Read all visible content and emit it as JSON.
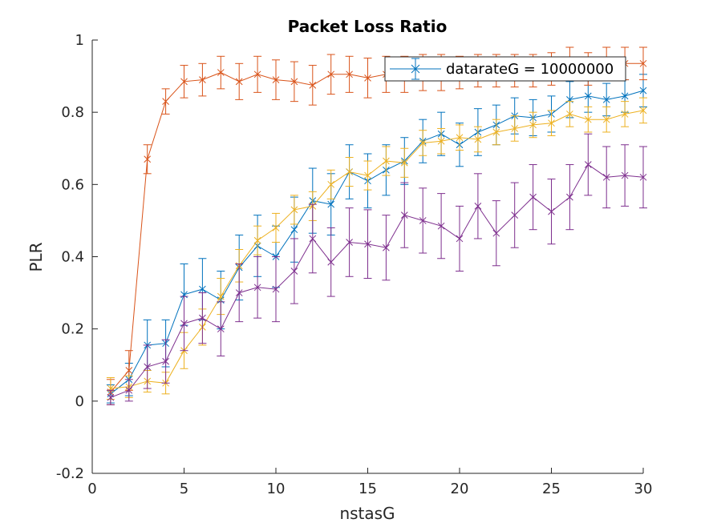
{
  "chart_data": {
    "type": "line",
    "title": "Packet Loss Ratio",
    "xlabel": "nstasG",
    "ylabel": "PLR",
    "xlim": [
      0,
      30
    ],
    "ylim": [
      -0.2,
      1
    ],
    "xticks": [
      0,
      5,
      10,
      15,
      20,
      25,
      30
    ],
    "yticks": [
      -0.2,
      0,
      0.2,
      0.4,
      0.6,
      0.8,
      1
    ],
    "xtick_labels": [
      "0",
      "5",
      "10",
      "15",
      "20",
      "25",
      "30"
    ],
    "ytick_labels": [
      "-0.2",
      "0",
      "0.2",
      "0.4",
      "0.6",
      "0.8",
      "1"
    ],
    "grid": false,
    "legend": {
      "position": "top-right",
      "entries": [
        "datarateG = 10000000"
      ]
    },
    "x": [
      1,
      2,
      3,
      4,
      5,
      6,
      7,
      8,
      9,
      10,
      11,
      12,
      13,
      14,
      15,
      16,
      17,
      18,
      19,
      20,
      21,
      22,
      23,
      24,
      25,
      26,
      27,
      28,
      29,
      30
    ],
    "series": [
      {
        "name": "datarateG = 10000000",
        "color": "#0072BD",
        "values": [
          0.02,
          0.06,
          0.155,
          0.16,
          0.295,
          0.31,
          0.28,
          0.37,
          0.43,
          0.4,
          0.475,
          0.555,
          0.545,
          0.635,
          0.61,
          0.64,
          0.665,
          0.72,
          0.74,
          0.71,
          0.745,
          0.765,
          0.79,
          0.785,
          0.795,
          0.835,
          0.845,
          0.835,
          0.845,
          0.86
        ],
        "errors": [
          0.025,
          0.045,
          0.07,
          0.065,
          0.085,
          0.085,
          0.08,
          0.09,
          0.085,
          0.085,
          0.09,
          0.09,
          0.085,
          0.075,
          0.075,
          0.07,
          0.065,
          0.06,
          0.06,
          0.06,
          0.065,
          0.055,
          0.05,
          0.05,
          0.05,
          0.05,
          0.045,
          0.045,
          0.045,
          0.045
        ]
      },
      {
        "color": "#D95319",
        "values": [
          0.025,
          0.085,
          0.67,
          0.83,
          0.885,
          0.89,
          0.91,
          0.885,
          0.905,
          0.89,
          0.885,
          0.875,
          0.905,
          0.905,
          0.895,
          0.905,
          0.905,
          0.91,
          0.91,
          0.91,
          0.915,
          0.915,
          0.915,
          0.915,
          0.92,
          0.935,
          0.92,
          0.935,
          0.935,
          0.935
        ],
        "errors": [
          0.035,
          0.055,
          0.04,
          0.035,
          0.045,
          0.045,
          0.045,
          0.05,
          0.05,
          0.055,
          0.055,
          0.055,
          0.055,
          0.05,
          0.055,
          0.05,
          0.05,
          0.05,
          0.05,
          0.045,
          0.045,
          0.045,
          0.045,
          0.045,
          0.045,
          0.045,
          0.045,
          0.045,
          0.045,
          0.045
        ]
      },
      {
        "color": "#EDB120",
        "values": [
          0.035,
          0.04,
          0.055,
          0.05,
          0.14,
          0.205,
          0.29,
          0.375,
          0.445,
          0.48,
          0.53,
          0.54,
          0.6,
          0.635,
          0.625,
          0.665,
          0.66,
          0.715,
          0.72,
          0.73,
          0.725,
          0.745,
          0.755,
          0.765,
          0.77,
          0.795,
          0.78,
          0.78,
          0.795,
          0.805
        ],
        "errors": [
          0.03,
          0.03,
          0.03,
          0.03,
          0.05,
          0.05,
          0.05,
          0.045,
          0.04,
          0.04,
          0.04,
          0.04,
          0.04,
          0.04,
          0.04,
          0.04,
          0.04,
          0.035,
          0.035,
          0.035,
          0.035,
          0.035,
          0.035,
          0.035,
          0.035,
          0.035,
          0.035,
          0.035,
          0.035,
          0.035
        ]
      },
      {
        "color": "#7E2F8E",
        "values": [
          0.01,
          0.03,
          0.095,
          0.11,
          0.215,
          0.23,
          0.2,
          0.3,
          0.315,
          0.31,
          0.36,
          0.45,
          0.385,
          0.44,
          0.435,
          0.425,
          0.515,
          0.5,
          0.485,
          0.45,
          0.54,
          0.465,
          0.515,
          0.565,
          0.525,
          0.565,
          0.655,
          0.62,
          0.625,
          0.62
        ],
        "errors": [
          0.02,
          0.03,
          0.06,
          0.06,
          0.075,
          0.07,
          0.075,
          0.08,
          0.085,
          0.09,
          0.09,
          0.095,
          0.095,
          0.095,
          0.095,
          0.09,
          0.09,
          0.09,
          0.09,
          0.09,
          0.09,
          0.09,
          0.09,
          0.09,
          0.09,
          0.09,
          0.085,
          0.085,
          0.085,
          0.085
        ]
      }
    ]
  }
}
